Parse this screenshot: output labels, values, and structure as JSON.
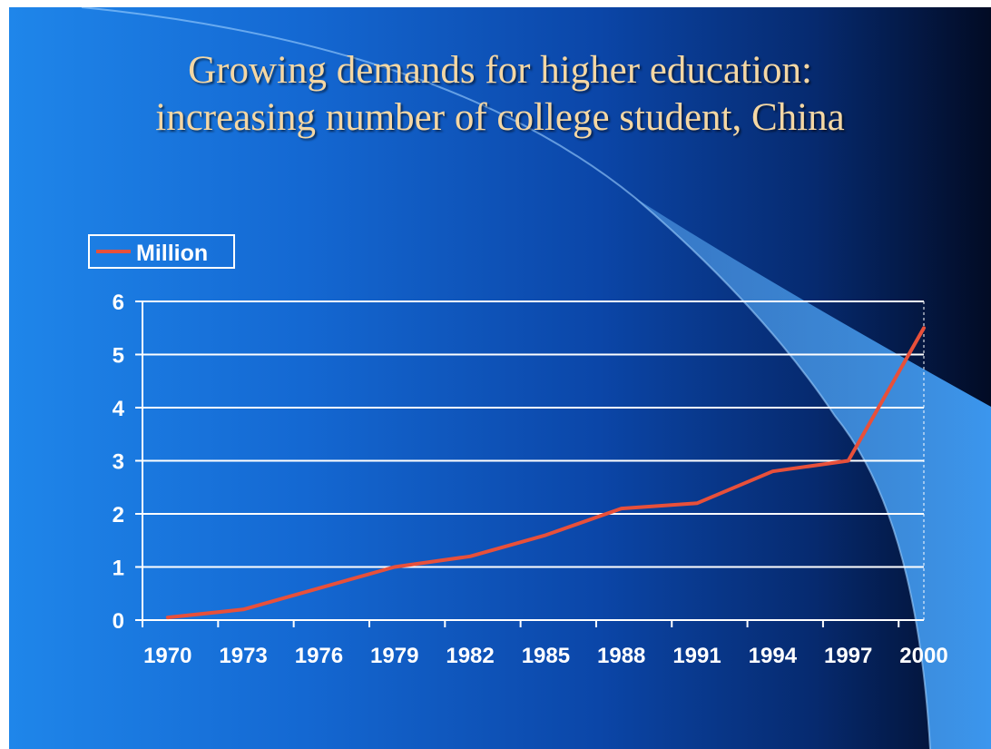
{
  "title": {
    "line1": "Growing demands for higher education:",
    "line2": "increasing number of college student, China"
  },
  "colors": {
    "series": "#e8503a",
    "title": "#f4d7a4",
    "axis": "#ffffff"
  },
  "chart_data": {
    "type": "line",
    "title": "Growing demands for higher education: increasing number of college student, China",
    "xlabel": "",
    "ylabel": "",
    "x_ticks": [
      "1970",
      "1973",
      "1976",
      "1979",
      "1982",
      "1985",
      "1988",
      "1991",
      "1994",
      "1997",
      "2000"
    ],
    "xlim": [
      1969,
      2000
    ],
    "ylim": [
      0,
      6
    ],
    "y_ticks": [
      "0",
      "1",
      "2",
      "3",
      "4",
      "5",
      "6"
    ],
    "grid": true,
    "legend_position": "top-left",
    "series": [
      {
        "name": "Million",
        "x": [
          1970,
          1973,
          1976,
          1979,
          1982,
          1985,
          1988,
          1991,
          1994,
          1997,
          2000
        ],
        "values": [
          0.05,
          0.2,
          0.6,
          1.0,
          1.2,
          1.6,
          2.1,
          2.2,
          2.8,
          3.0,
          5.5
        ]
      }
    ]
  }
}
